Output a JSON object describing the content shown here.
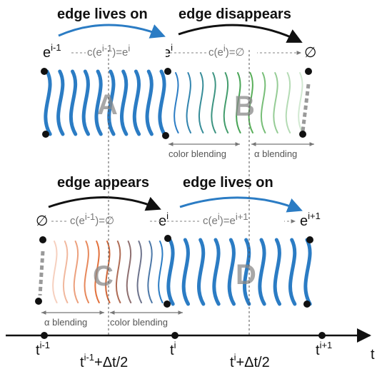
{
  "labels": {
    "edge_lives_on_top": "edge lives on",
    "edge_disappears": "edge disappears",
    "edge_appears": "edge appears",
    "edge_lives_on_bottom": "edge lives on"
  },
  "nodes_top": {
    "left": {
      "base": "e",
      "sup": "i-1"
    },
    "mid": {
      "base": "e",
      "sup": "i"
    },
    "right": {
      "base": "∅",
      "sup": ""
    }
  },
  "nodes_bottom": {
    "left": {
      "base": "∅",
      "sup": ""
    },
    "mid": {
      "base": "e",
      "sup": "i"
    },
    "right": {
      "base": "e",
      "sup": "i+1"
    }
  },
  "correspondences": {
    "top_left": {
      "text": "c(e",
      "sup": "i-1",
      "rest": ")=e",
      "sup2": "i"
    },
    "top_right": {
      "text": "c(e",
      "sup": "i",
      "rest": ")=∅",
      "sup2": ""
    },
    "bottom_left": {
      "text": "c(e",
      "sup": "i-1",
      "rest": ")=∅",
      "sup2": ""
    },
    "bottom_right": {
      "text": "c(e",
      "sup": "i",
      "rest": ")=e",
      "sup2": "i+1"
    }
  },
  "regions": {
    "a": "A",
    "b": "B",
    "c": "C",
    "d": "D"
  },
  "blending": {
    "color_top": "color blending",
    "alpha_top": "α blending",
    "alpha_bottom": "α blending",
    "color_bottom": "color blending"
  },
  "timeline": {
    "axis_label": "t",
    "ticks": [
      {
        "base": "t",
        "sup": "i-1",
        "suffix": ""
      },
      {
        "base": "t",
        "sup": "i-1",
        "suffix": "+Δt/2"
      },
      {
        "base": "t",
        "sup": "i",
        "suffix": ""
      },
      {
        "base": "t",
        "sup": "i",
        "suffix": "+Δt/2"
      },
      {
        "base": "t",
        "sup": "i+1",
        "suffix": ""
      }
    ]
  },
  "colors": {
    "edge_blue": "#2b7cc4",
    "arrow_black": "#111111",
    "dashed_gray": "#9a9a9a",
    "green_fade": "#4aa84a",
    "orange_fade": "#e0642a"
  }
}
